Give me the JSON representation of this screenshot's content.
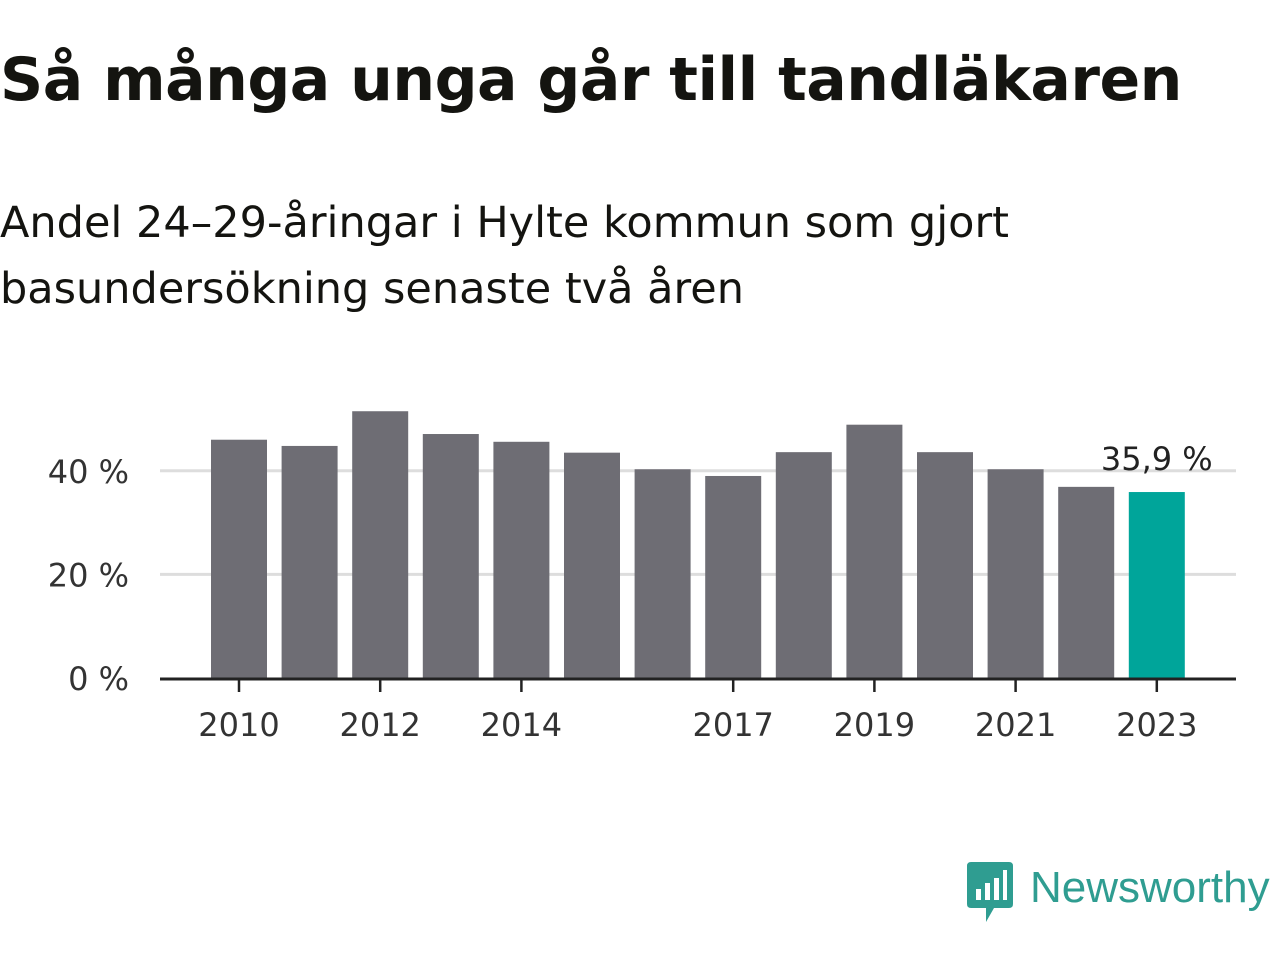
{
  "title": "Så många unga går till tandläkaren",
  "subtitle": "Andel 24–29-åringar i Hylte kommun som gjort basundersökning senaste två åren",
  "logo": {
    "text": "Newsworthy",
    "icon": "newsworthy-chart-icon",
    "color": "#2f9d91"
  },
  "colors": {
    "bar": "#6e6d74",
    "highlight": "#00a59a",
    "grid": "#dddddd",
    "axis": "#222222",
    "text": "#333333"
  },
  "chart_data": {
    "type": "bar",
    "categories": [
      "2010",
      "2011",
      "2012",
      "2013",
      "2014",
      "2015",
      "2016",
      "2017",
      "2018",
      "2019",
      "2020",
      "2021",
      "2022",
      "2023"
    ],
    "values": [
      46.0,
      44.8,
      51.5,
      47.1,
      45.6,
      43.5,
      40.3,
      39.0,
      43.6,
      48.9,
      43.6,
      40.3,
      36.9,
      35.9
    ],
    "x_tick_labels": [
      "2010",
      "2012",
      "2014",
      "2017",
      "2019",
      "2021",
      "2023"
    ],
    "y_ticks": [
      0,
      20,
      40
    ],
    "y_tick_labels": [
      "0 %",
      "20 %",
      "40 %"
    ],
    "ylim": [
      0,
      55
    ],
    "grid": true,
    "highlight_category": "2023",
    "annotation": {
      "category": "2023",
      "text": "35,9 %"
    },
    "xlabel": "",
    "ylabel": ""
  }
}
